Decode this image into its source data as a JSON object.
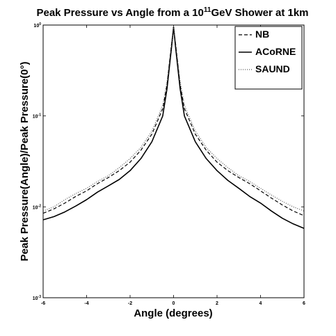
{
  "chart_data": {
    "type": "line",
    "title": "Peak Pressure vs Angle from a 10¹¹GeV Shower at 1km",
    "title_parts": {
      "before": "Peak Pressure vs Angle from a 10",
      "sup": "11",
      "after": "GeV Shower at 1km"
    },
    "xlabel": "Angle (degrees)",
    "ylabel": "Peak Pressure(Angle)/Peak Pressure(0°)",
    "xlim": [
      -6,
      6
    ],
    "ylim": [
      0.001,
      1
    ],
    "yscale": "log",
    "grid": false,
    "legend_position": "top-right",
    "x_ticks": [
      {
        "value": -6,
        "label": "-6"
      },
      {
        "value": -4,
        "label": "-4"
      },
      {
        "value": -2,
        "label": "-2"
      },
      {
        "value": 0,
        "label": "0"
      },
      {
        "value": 2,
        "label": "2"
      },
      {
        "value": 4,
        "label": "4"
      },
      {
        "value": 6,
        "label": "6"
      }
    ],
    "y_ticks": [
      {
        "value": 0.001,
        "base": "10",
        "exp": "-3"
      },
      {
        "value": 0.01,
        "base": "10",
        "exp": "-2"
      },
      {
        "value": 0.1,
        "base": "10",
        "exp": "-1"
      },
      {
        "value": 1,
        "base": "10",
        "exp": "0"
      }
    ],
    "series": [
      {
        "name": "NB",
        "style": "dashed",
        "color": "#000000",
        "x": [
          -6,
          -5.5,
          -5,
          -4.5,
          -4,
          -3.5,
          -3,
          -2.5,
          -2,
          -1.5,
          -1,
          -0.5,
          -0.3,
          -0.1,
          0,
          0.1,
          0.3,
          0.5,
          1,
          1.5,
          2,
          2.5,
          3,
          3.5,
          4,
          4.5,
          5,
          5.5,
          6
        ],
        "y": [
          0.0085,
          0.0095,
          0.011,
          0.013,
          0.015,
          0.018,
          0.021,
          0.025,
          0.031,
          0.042,
          0.063,
          0.12,
          0.22,
          0.6,
          0.95,
          0.6,
          0.22,
          0.12,
          0.063,
          0.042,
          0.031,
          0.025,
          0.021,
          0.018,
          0.015,
          0.0125,
          0.0105,
          0.009,
          0.008
        ]
      },
      {
        "name": "ACoRNE",
        "style": "solid",
        "color": "#000000",
        "x": [
          -6,
          -5.5,
          -5,
          -4.5,
          -4,
          -3.5,
          -3,
          -2.5,
          -2,
          -1.5,
          -1,
          -0.5,
          -0.3,
          -0.1,
          0,
          0.1,
          0.3,
          0.5,
          1,
          1.5,
          2,
          2.5,
          3,
          3.5,
          4,
          4.5,
          5,
          5.5,
          6
        ],
        "y": [
          0.0072,
          0.0078,
          0.0088,
          0.0102,
          0.012,
          0.0145,
          0.017,
          0.02,
          0.025,
          0.034,
          0.052,
          0.1,
          0.2,
          0.55,
          0.95,
          0.55,
          0.2,
          0.1,
          0.052,
          0.034,
          0.025,
          0.0195,
          0.016,
          0.013,
          0.011,
          0.009,
          0.0075,
          0.0065,
          0.0058
        ]
      },
      {
        "name": "SAUND",
        "style": "dotted",
        "color": "#555555",
        "x": [
          -6,
          -5.5,
          -5,
          -4.5,
          -4,
          -3.5,
          -3,
          -2.5,
          -2,
          -1.5,
          -1,
          -0.5,
          -0.3,
          -0.1,
          0,
          0.1,
          0.3,
          0.5,
          1,
          1.5,
          2,
          2.5,
          3,
          3.5,
          4,
          4.5,
          5,
          5.5,
          6
        ],
        "y": [
          0.009,
          0.01,
          0.012,
          0.014,
          0.016,
          0.019,
          0.022,
          0.027,
          0.034,
          0.045,
          0.068,
          0.13,
          0.24,
          0.62,
          0.96,
          0.62,
          0.24,
          0.13,
          0.068,
          0.045,
          0.034,
          0.027,
          0.022,
          0.019,
          0.016,
          0.0135,
          0.0115,
          0.01,
          0.009
        ]
      }
    ]
  }
}
